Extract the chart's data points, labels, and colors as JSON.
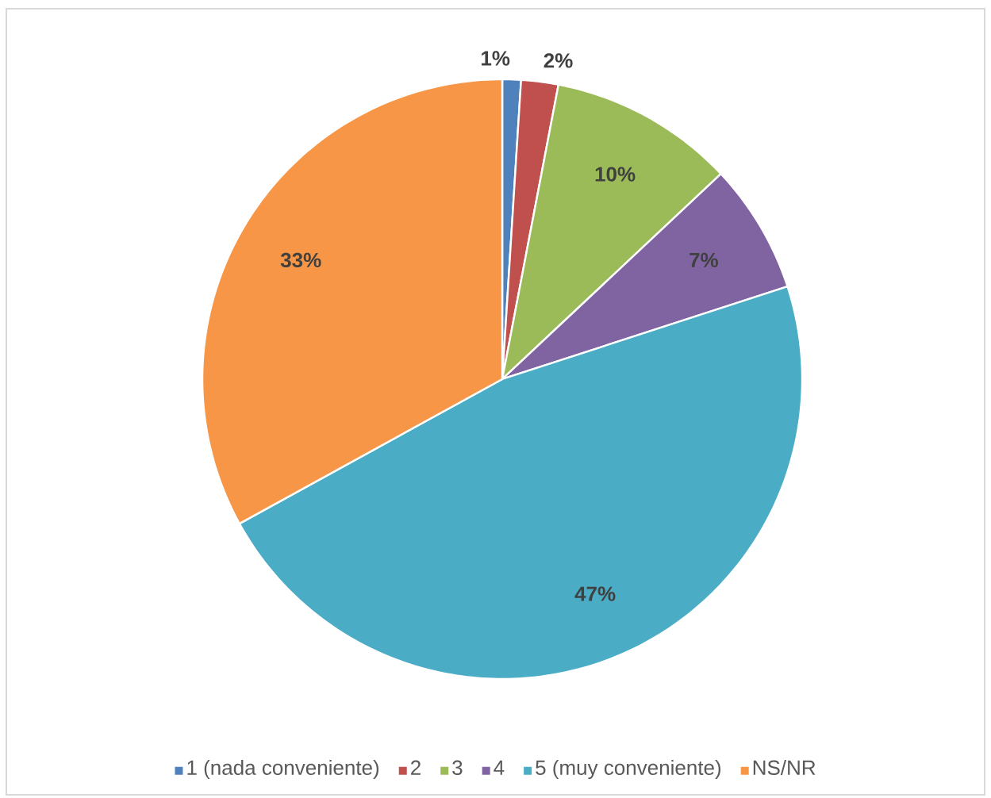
{
  "chart_data": {
    "type": "pie",
    "categories": [
      "1 (nada conveniente)",
      "2",
      "3",
      "4",
      "5 (muy conveniente)",
      "NS/NR"
    ],
    "values": [
      1,
      2,
      10,
      7,
      47,
      33
    ],
    "value_labels": [
      "1%",
      "2%",
      "10%",
      "7%",
      "47%",
      "33%"
    ],
    "colors": [
      "#4f81bd",
      "#c0504d",
      "#9bbb59",
      "#8064a2",
      "#4bacc6",
      "#f79646"
    ],
    "legend": "bottom"
  }
}
